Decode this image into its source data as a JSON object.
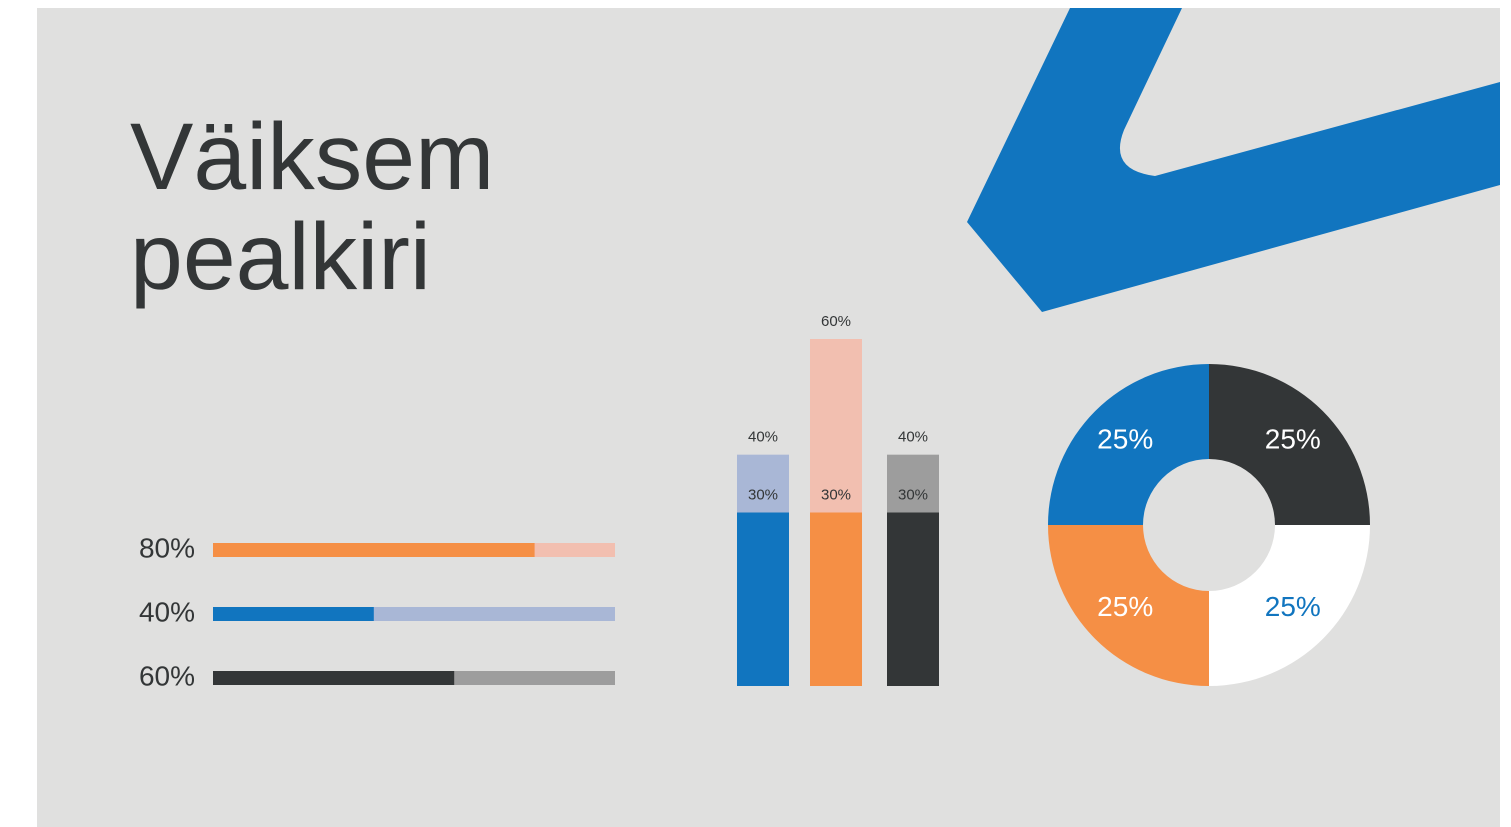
{
  "title": "Väiksem pealkiri",
  "chart_data": [
    {
      "type": "bar",
      "orientation": "horizontal",
      "values": [
        80,
        40,
        60
      ],
      "value_labels": [
        "80%",
        "40%",
        "60%"
      ],
      "colors": [
        "#f58f45",
        "#1175bf",
        "#333637"
      ],
      "track_colors": [
        "#f2bfb0",
        "#a9b7d6",
        "#9d9d9d"
      ],
      "xlim": [
        0,
        100
      ]
    },
    {
      "type": "bar",
      "orientation": "vertical",
      "series": [
        {
          "values": [
            40,
            60,
            40
          ],
          "value_labels": [
            "40%",
            "60%",
            "40%"
          ],
          "colors": [
            "#a9b7d6",
            "#f2bfb0",
            "#9d9d9d"
          ]
        },
        {
          "values": [
            30,
            30,
            30
          ],
          "value_labels": [
            "30%",
            "30%",
            "30%"
          ],
          "colors": [
            "#1175bf",
            "#f58f45",
            "#333637"
          ]
        }
      ],
      "ylim": [
        0,
        60
      ]
    },
    {
      "type": "pie",
      "hole": true,
      "values": [
        25,
        25,
        25,
        25
      ],
      "value_labels": [
        "25%",
        "25%",
        "25%",
        "25%"
      ],
      "colors": [
        "#333637",
        "#ffffff",
        "#f58f45",
        "#1175bf"
      ],
      "label_colors": [
        "#ffffff",
        "#1175bf",
        "#ffffff",
        "#ffffff"
      ]
    }
  ]
}
